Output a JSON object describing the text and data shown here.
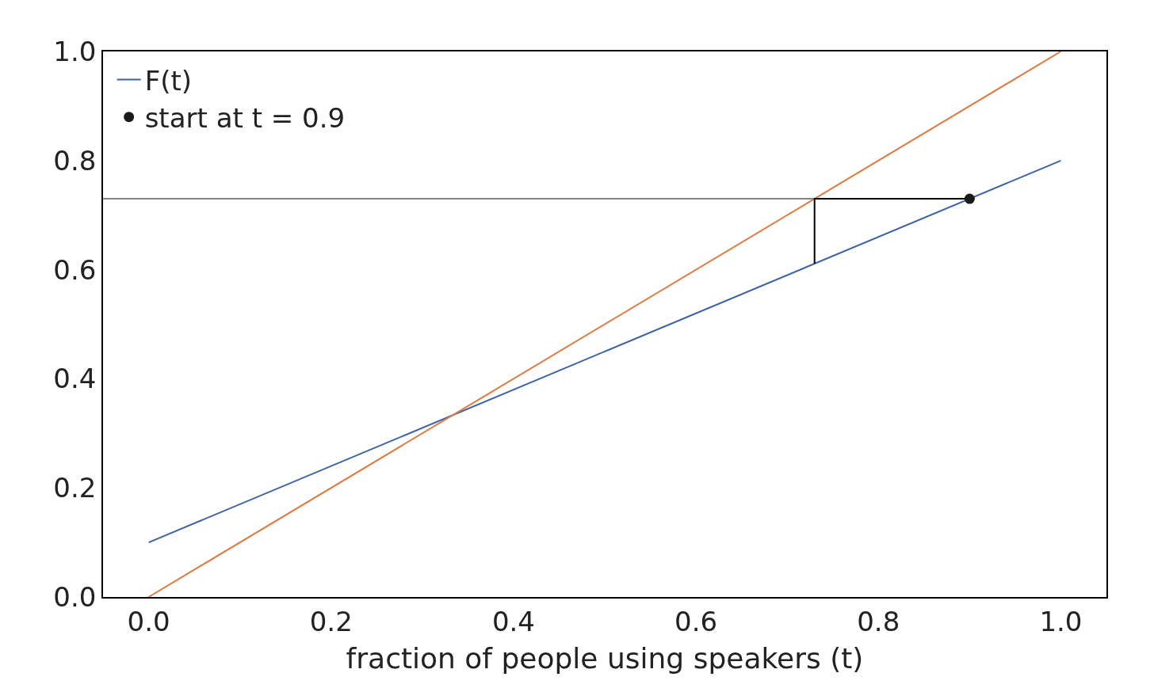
{
  "chart_data": {
    "type": "line",
    "xlabel": "fraction of people using speakers (t)",
    "xlim": [
      -0.05,
      1.05
    ],
    "ylim": [
      0,
      1
    ],
    "xticks": [
      {
        "value": 0,
        "label": "0.0"
      },
      {
        "value": 0.2,
        "label": "0.2"
      },
      {
        "value": 0.4,
        "label": "0.4"
      },
      {
        "value": 0.6,
        "label": "0.6"
      },
      {
        "value": 0.8,
        "label": "0.8"
      },
      {
        "value": 1,
        "label": "1.0"
      }
    ],
    "yticks": [
      {
        "value": 0,
        "label": "0.0"
      },
      {
        "value": 0.2,
        "label": "0.2"
      },
      {
        "value": 0.4,
        "label": "0.4"
      },
      {
        "value": 0.6,
        "label": "0.6"
      },
      {
        "value": 0.8,
        "label": "0.8"
      },
      {
        "value": 1,
        "label": "1.0"
      }
    ],
    "legend": "top left",
    "series": [
      {
        "name": "F(t)",
        "color": "#3b62a6",
        "x": [
          0,
          1
        ],
        "values": [
          0.1,
          0.8
        ]
      },
      {
        "color": "#dd7b43",
        "x": [
          0,
          1
        ],
        "values": [
          0,
          1
        ]
      },
      {
        "color": "#858585",
        "x": [
          -0.05,
          0.73
        ],
        "values": [
          0.73,
          0.73
        ]
      },
      {
        "color": "#000000",
        "x": [
          0.73,
          0.73,
          0.9
        ],
        "values": [
          0.611,
          0.73,
          0.73
        ]
      },
      {
        "name": "start at t = 0.9",
        "type": "scatter",
        "marker": "circle",
        "color": "#1a1a1a",
        "x": [
          0.9
        ],
        "values": [
          0.73
        ]
      }
    ]
  }
}
